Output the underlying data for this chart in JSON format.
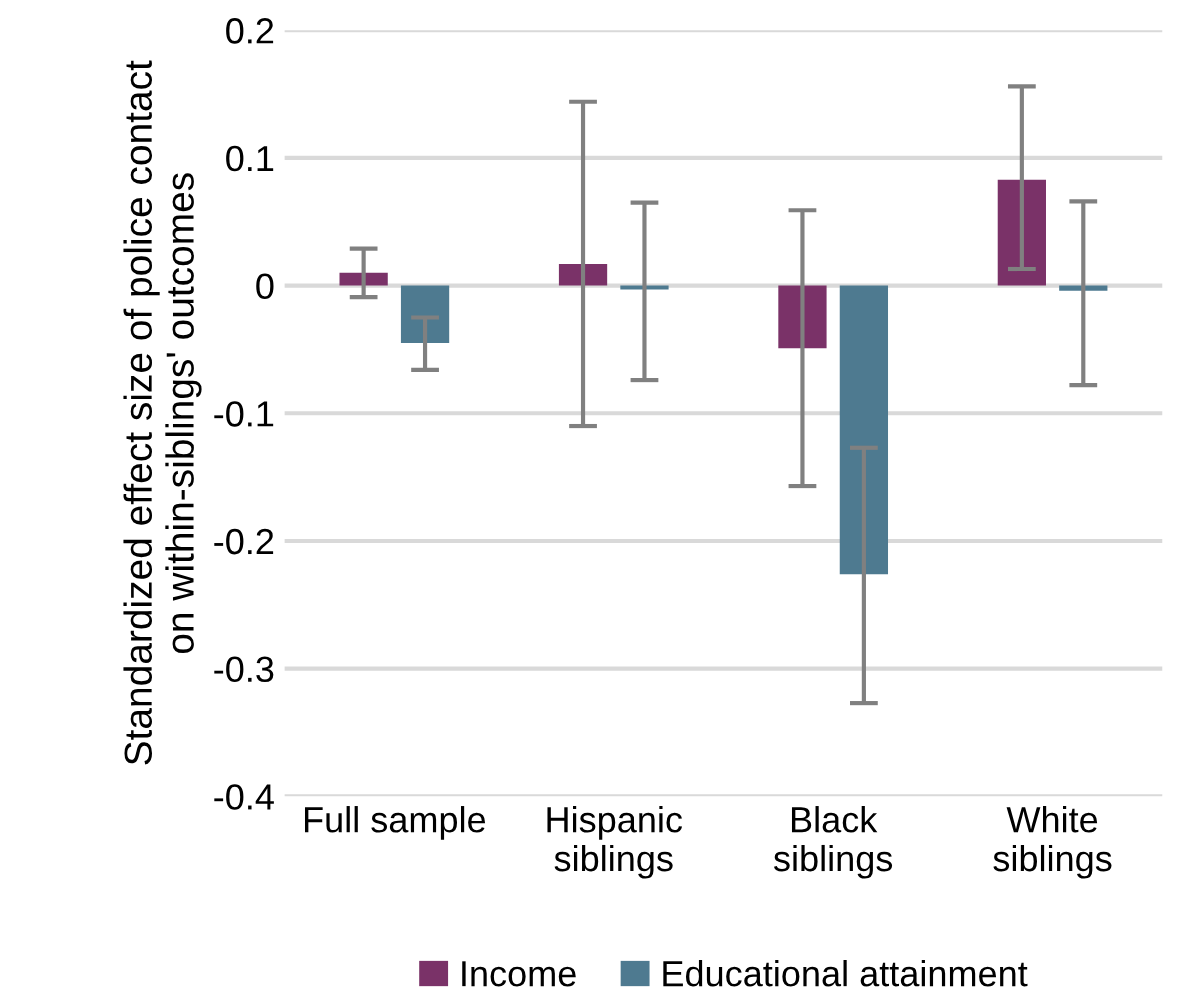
{
  "chart_data": {
    "type": "bar",
    "ylabel": "Standardized effect size of police contact\non within-siblings' outcomes",
    "categories": [
      "Full sample",
      "Hispanic\nsiblings",
      "Black\nsiblings",
      "White\nsiblings"
    ],
    "series": [
      {
        "name": "Income",
        "color": "#7a3268",
        "values": [
          0.01,
          0.017,
          -0.049,
          0.083
        ],
        "errors": [
          [
            -0.009,
            0.029
          ],
          [
            -0.11,
            0.144
          ],
          [
            -0.157,
            0.059
          ],
          [
            0.013,
            0.156
          ]
        ]
      },
      {
        "name": "Educational attainment",
        "color": "#4e7a90",
        "values": [
          -0.045,
          -0.003,
          -0.226,
          -0.004
        ],
        "errors": [
          [
            -0.066,
            -0.025
          ],
          [
            -0.074,
            0.065
          ],
          [
            -0.327,
            -0.127
          ],
          [
            -0.078,
            0.066
          ]
        ]
      }
    ],
    "ylim": [
      -0.4,
      0.2
    ],
    "yticks": [
      {
        "value": -0.4,
        "label": "-0.4"
      },
      {
        "value": -0.3,
        "label": "-0.3"
      },
      {
        "value": -0.2,
        "label": "-0.2"
      },
      {
        "value": -0.1,
        "label": "-0.1"
      },
      0,
      0.1,
      0.2
    ],
    "grid": "y",
    "legend": "bottom"
  }
}
